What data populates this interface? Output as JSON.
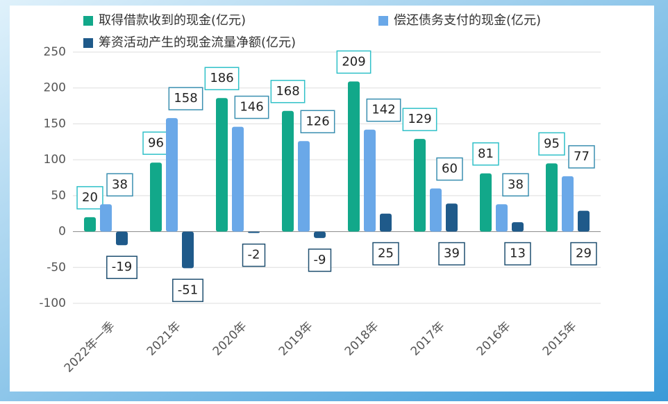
{
  "chart_data": {
    "type": "bar",
    "categories": [
      "2022年一季",
      "2021年",
      "2020年",
      "2019年",
      "2018年",
      "2017年",
      "2016年",
      "2015年"
    ],
    "series": [
      {
        "name": "取得借款收到的现金(亿元)",
        "color": "#12a88a",
        "values": [
          20,
          96,
          186,
          168,
          209,
          129,
          81,
          95
        ]
      },
      {
        "name": "偿还债务支付的现金(亿元)",
        "color": "#6aa8e8",
        "values": [
          38,
          158,
          146,
          126,
          142,
          60,
          38,
          77
        ]
      },
      {
        "name": "筹资活动产生的现金流量净额(亿元)",
        "color": "#1f5a8a",
        "values": [
          -19,
          -51,
          -2,
          -9,
          25,
          39,
          13,
          29
        ]
      }
    ],
    "ylim": [
      -100,
      250
    ],
    "yticks": [
      -100,
      -50,
      0,
      50,
      100,
      150,
      200,
      250
    ],
    "grid": true
  }
}
